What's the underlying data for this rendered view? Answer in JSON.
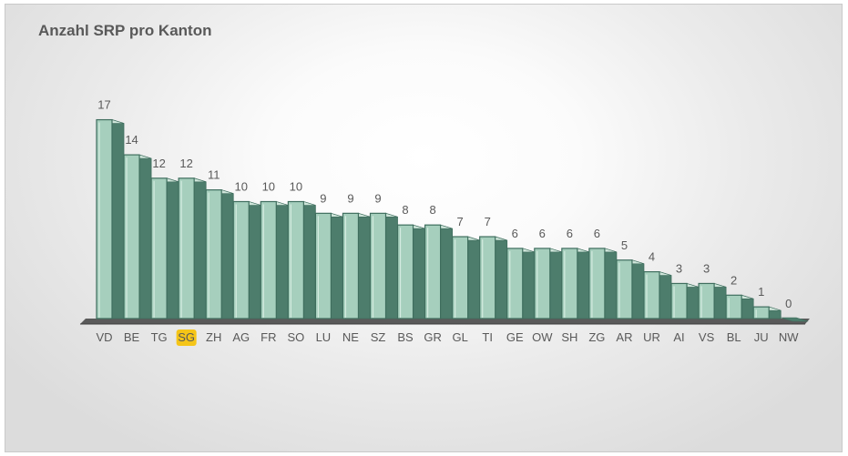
{
  "chart_data": {
    "type": "bar",
    "title": "Anzahl SRP pro Kanton",
    "xlabel": "",
    "ylabel": "",
    "ylim": [
      0,
      18
    ],
    "grid": false,
    "categories": [
      "VD",
      "BE",
      "TG",
      "SG",
      "ZH",
      "AG",
      "FR",
      "SO",
      "LU",
      "NE",
      "SZ",
      "BS",
      "GR",
      "GL",
      "TI",
      "GE",
      "OW",
      "SH",
      "ZG",
      "AR",
      "UR",
      "AI",
      "VS",
      "BL",
      "JU",
      "NW"
    ],
    "values": [
      17,
      14,
      12,
      12,
      11,
      10,
      10,
      10,
      9,
      9,
      9,
      8,
      8,
      7,
      7,
      6,
      6,
      6,
      6,
      5,
      4,
      3,
      3,
      2,
      1,
      0
    ],
    "highlighted_category": "SG",
    "colors": {
      "bar_front": "#a6cfbd",
      "bar_side": "#4d7d6c",
      "bar_top": "#cfe5da",
      "bar_edge": "#3f6e5e",
      "floor": "#555555",
      "highlight": "#f5c518"
    }
  }
}
